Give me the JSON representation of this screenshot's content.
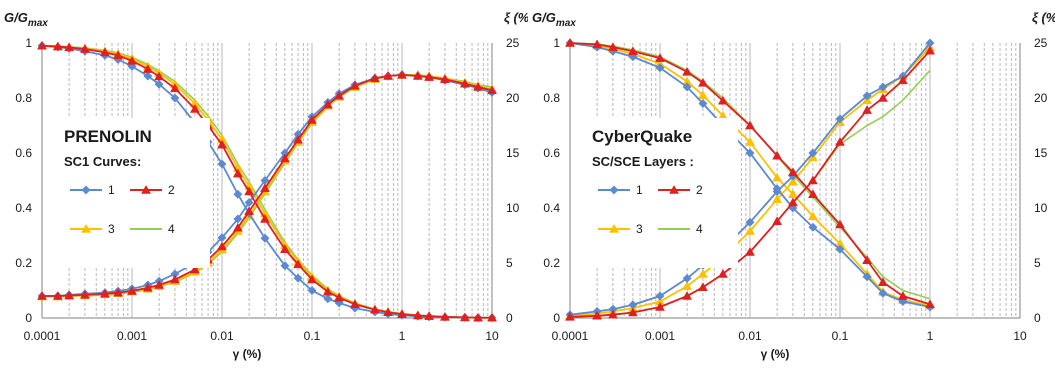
{
  "colors": {
    "s1": "#5b8ad0",
    "s2": "#e02020",
    "s3": "#ffc000",
    "s4": "#92d050",
    "grid": "#9a9a9a",
    "axis": "#808080"
  },
  "chart_data": [
    {
      "type": "line",
      "title_left": "G/Gmax",
      "title_left_main": "G/G",
      "title_left_sub": "max",
      "title_right": "ξ (%)",
      "xlabel": "γ (%)",
      "x_scale": "log",
      "xlim": [
        0.0001,
        10
      ],
      "ylim_left": [
        0,
        1
      ],
      "ylim_right": [
        0,
        25
      ],
      "x_tick_labels": [
        "0.0001",
        "0.001",
        "0.01",
        "0.1",
        "1",
        "10"
      ],
      "y_left_tick_labels": [
        "0",
        "0.2",
        "0.4",
        "0.6",
        "0.8",
        "1"
      ],
      "y_right_tick_labels": [
        "0",
        "5",
        "10",
        "15",
        "20",
        "25"
      ],
      "grid": "vertical minor log gridlines (dashed)",
      "annotation_title": "PRENOLIN",
      "annotation_subtitle": "SC1 Curves:",
      "legend_position": "left-middle",
      "x": [
        0.0001,
        0.00015,
        0.0002,
        0.0003,
        0.0005,
        0.0007,
        0.001,
        0.0015,
        0.002,
        0.003,
        0.005,
        0.007,
        0.01,
        0.015,
        0.02,
        0.03,
        0.05,
        0.07,
        0.1,
        0.15,
        0.2,
        0.3,
        0.5,
        0.7,
        1,
        1.5,
        2,
        3,
        5,
        7,
        10
      ],
      "series": [
        {
          "name": "1",
          "marker": "diamond",
          "color_key": "s1",
          "modulus": [
            0.99,
            0.985,
            0.98,
            0.97,
            0.955,
            0.94,
            0.915,
            0.88,
            0.85,
            0.8,
            0.71,
            0.64,
            0.56,
            0.45,
            0.38,
            0.29,
            0.19,
            0.145,
            0.1,
            0.07,
            0.055,
            0.036,
            0.022,
            0.015,
            0.01,
            0.006,
            0.004,
            0.003,
            0.002,
            0.001,
            0.001
          ],
          "damping": [
            2.0,
            2.0,
            2.1,
            2.2,
            2.3,
            2.45,
            2.65,
            3.0,
            3.35,
            4.0,
            5.0,
            6.0,
            7.3,
            9.0,
            10.5,
            12.5,
            15.0,
            16.7,
            18.3,
            19.6,
            20.4,
            21.2,
            21.8,
            22.0,
            22.1,
            22.0,
            21.9,
            21.6,
            21.2,
            20.9,
            20.5
          ]
        },
        {
          "name": "2",
          "marker": "triangle",
          "color_key": "s2",
          "modulus": [
            0.99,
            0.987,
            0.984,
            0.978,
            0.966,
            0.955,
            0.935,
            0.905,
            0.878,
            0.835,
            0.76,
            0.7,
            0.63,
            0.525,
            0.46,
            0.36,
            0.25,
            0.195,
            0.14,
            0.095,
            0.074,
            0.05,
            0.03,
            0.021,
            0.014,
            0.009,
            0.007,
            0.004,
            0.002,
            0.001,
            0.001
          ],
          "damping": [
            2.0,
            2.0,
            2.05,
            2.1,
            2.2,
            2.3,
            2.45,
            2.75,
            3.0,
            3.5,
            4.4,
            5.3,
            6.5,
            8.2,
            9.7,
            11.8,
            14.5,
            16.2,
            18.0,
            19.4,
            20.2,
            21.1,
            21.8,
            22.0,
            22.1,
            22.0,
            21.9,
            21.7,
            21.3,
            21.0,
            20.7
          ]
        },
        {
          "name": "3",
          "marker": "triangle",
          "color_key": "s3",
          "modulus": [
            0.99,
            0.988,
            0.985,
            0.98,
            0.97,
            0.96,
            0.943,
            0.915,
            0.89,
            0.85,
            0.78,
            0.72,
            0.65,
            0.545,
            0.48,
            0.38,
            0.265,
            0.205,
            0.15,
            0.1,
            0.078,
            0.052,
            0.031,
            0.022,
            0.015,
            0.01,
            0.007,
            0.004,
            0.002,
            0.001,
            0.001
          ],
          "damping": [
            1.95,
            1.95,
            2.0,
            2.05,
            2.15,
            2.25,
            2.4,
            2.65,
            2.9,
            3.35,
            4.2,
            5.0,
            6.2,
            7.9,
            9.3,
            11.5,
            14.3,
            16.0,
            17.8,
            19.3,
            20.1,
            21.0,
            21.7,
            22.0,
            22.1,
            22.1,
            22.0,
            21.8,
            21.4,
            21.1,
            20.8
          ]
        },
        {
          "name": "4",
          "marker": "none",
          "color_key": "s4",
          "modulus": [
            0.99,
            0.989,
            0.986,
            0.982,
            0.973,
            0.964,
            0.948,
            0.922,
            0.898,
            0.86,
            0.792,
            0.735,
            0.665,
            0.56,
            0.495,
            0.395,
            0.275,
            0.212,
            0.156,
            0.105,
            0.081,
            0.054,
            0.032,
            0.023,
            0.016,
            0.01,
            0.007,
            0.004,
            0.002,
            0.001,
            0.001
          ],
          "damping": [
            1.95,
            1.95,
            2.0,
            2.0,
            2.1,
            2.2,
            2.35,
            2.6,
            2.85,
            3.25,
            4.1,
            4.9,
            6.0,
            7.7,
            9.1,
            11.3,
            14.1,
            15.9,
            17.7,
            19.2,
            20.1,
            21.0,
            21.7,
            22.0,
            22.1,
            22.1,
            22.0,
            21.8,
            21.5,
            21.2,
            21.0
          ]
        }
      ]
    },
    {
      "type": "line",
      "title_left": "G/Gmax",
      "title_left_main": "G/G",
      "title_left_sub": "max",
      "title_right": "ξ (%)",
      "xlabel": "γ (%)",
      "x_scale": "log",
      "xlim": [
        0.0001,
        10
      ],
      "ylim_left": [
        0,
        1
      ],
      "ylim_right": [
        0,
        25
      ],
      "x_tick_labels": [
        "0.0001",
        "0.001",
        "0.01",
        "0.1",
        "1",
        "10"
      ],
      "y_left_tick_labels": [
        "0",
        "0.2",
        "0.4",
        "0.6",
        "0.8",
        "1"
      ],
      "y_right_tick_labels": [
        "0",
        "5",
        "10",
        "15",
        "20",
        "25"
      ],
      "grid": "vertical minor log gridlines (dashed)",
      "annotation_title": "CyberQuake",
      "annotation_subtitle": "SC/SCE Layers :",
      "legend_position": "left-middle",
      "x": [
        0.0001,
        0.0002,
        0.0003,
        0.0005,
        0.001,
        0.002,
        0.003,
        0.005,
        0.01,
        0.02,
        0.03,
        0.05,
        0.1,
        0.2,
        0.3,
        0.5,
        1
      ],
      "series": [
        {
          "name": "1",
          "marker": "diamond",
          "color_key": "s1",
          "modulus": [
            1.0,
            0.985,
            0.97,
            0.95,
            0.91,
            0.84,
            0.78,
            0.7,
            0.6,
            0.47,
            0.4,
            0.33,
            0.25,
            0.15,
            0.09,
            0.06,
            0.04
          ],
          "damping": [
            0.3,
            0.6,
            0.8,
            1.2,
            2.0,
            3.6,
            4.8,
            6.3,
            8.7,
            11.5,
            12.9,
            15.0,
            18.1,
            20.2,
            21.0,
            22.0,
            25.0
          ]
        },
        {
          "name": "2",
          "marker": "triangle",
          "color_key": "s2",
          "modulus": [
            1.0,
            0.995,
            0.985,
            0.97,
            0.945,
            0.895,
            0.855,
            0.79,
            0.7,
            0.59,
            0.53,
            0.45,
            0.34,
            0.21,
            0.13,
            0.08,
            0.05
          ],
          "damping": [
            0.1,
            0.2,
            0.3,
            0.5,
            1.0,
            2.0,
            2.8,
            4.0,
            6.0,
            8.8,
            10.5,
            12.5,
            16.0,
            18.9,
            20.0,
            21.6,
            24.3
          ]
        },
        {
          "name": "3",
          "marker": "triangle",
          "color_key": "s3",
          "modulus": [
            1.0,
            0.99,
            0.978,
            0.96,
            0.925,
            0.86,
            0.81,
            0.735,
            0.64,
            0.51,
            0.45,
            0.37,
            0.27,
            0.16,
            0.095,
            0.065,
            0.045
          ],
          "damping": [
            0.2,
            0.4,
            0.6,
            0.9,
            1.5,
            2.9,
            4.0,
            5.5,
            7.9,
            10.8,
            12.4,
            14.6,
            17.8,
            19.8,
            20.8,
            22.0,
            24.6
          ]
        },
        {
          "name": "4",
          "marker": "none",
          "color_key": "s4",
          "modulus": [
            1.0,
            0.996,
            0.988,
            0.975,
            0.95,
            0.9,
            0.86,
            0.8,
            0.7,
            0.59,
            0.52,
            0.44,
            0.33,
            0.22,
            0.15,
            0.1,
            0.07
          ],
          "damping": [
            0.1,
            0.2,
            0.3,
            0.5,
            1.0,
            2.0,
            2.8,
            4.0,
            6.0,
            8.8,
            10.5,
            12.5,
            15.8,
            17.5,
            18.3,
            19.8,
            22.5
          ]
        }
      ]
    }
  ]
}
